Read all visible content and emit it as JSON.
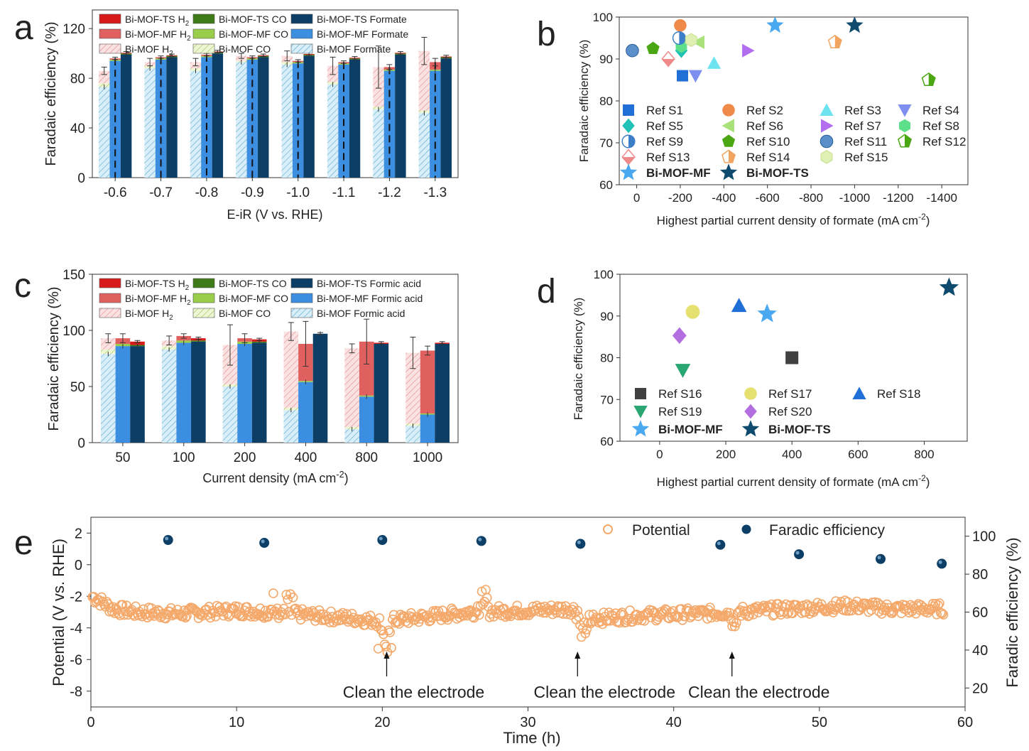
{
  "panels": {
    "a": {
      "letter": "a",
      "title": "",
      "xlabel": "E-iR (V vs. RHE)",
      "ylabel": "Faradaic efficiency (%)",
      "ylim": [
        0,
        135
      ],
      "yticks": [
        0,
        40,
        80,
        120
      ],
      "categories": [
        "-0.6",
        "-0.7",
        "-0.8",
        "-0.9",
        "-1.0",
        "-1.1",
        "-1.2",
        "-1.3"
      ],
      "legend": [
        [
          "Bi-MOF-TS H",
          "Bi-MOF-TS CO",
          "Bi-MOF-TS Formate"
        ],
        [
          "Bi-MOF-MF H",
          "Bi-MOF-MF CO",
          "Bi-MOF-MF Formate"
        ],
        [
          "Bi-MOF H",
          "Bi-MOF CO",
          "Bi-MOF Formate"
        ]
      ],
      "legend_sub": "2",
      "groups": [
        {
          "sample": "Bi-MOF",
          "formate": [
            73,
            88,
            86,
            93,
            91,
            75,
            55,
            52
          ],
          "co": [
            3,
            2,
            2,
            1,
            2,
            2,
            2,
            2
          ],
          "h2": [
            10,
            3,
            5,
            4,
            5,
            13,
            32,
            48
          ],
          "err": [
            3,
            3,
            3,
            2,
            4,
            7,
            17,
            11
          ]
        },
        {
          "sample": "Bi-MOF-MF",
          "formate": [
            94,
            95,
            97,
            95,
            92,
            91,
            86,
            86
          ],
          "co": [
            1,
            1,
            1,
            1,
            1,
            1,
            1,
            1
          ],
          "h2": [
            1,
            1,
            1,
            1,
            1,
            1,
            2,
            6
          ],
          "err": [
            1,
            1,
            1,
            1,
            1,
            1,
            2,
            3
          ]
        },
        {
          "sample": "Bi-MOF-TS",
          "formate": [
            99,
            97,
            100,
            97,
            98,
            95,
            99,
            96
          ],
          "co": [
            1,
            1,
            1,
            1,
            1,
            1,
            1,
            1
          ],
          "h2": [
            0.5,
            0.5,
            0.5,
            0.5,
            0.5,
            0.5,
            0.5,
            0.5
          ],
          "err": [
            1,
            1,
            1,
            1,
            1,
            1,
            1,
            1
          ]
        }
      ]
    },
    "b": {
      "letter": "b",
      "xlabel": "Highest partial current density of formate (mA cm",
      "xlabel_sup": "-2",
      "xlabel_end": ")",
      "ylabel": "Faradaic efficiency (%)",
      "xlim": [
        80,
        -1520
      ],
      "ylim": [
        60,
        100
      ],
      "xticks": [
        "0",
        "-200",
        "-400",
        "-600",
        "-800",
        "-1000",
        "-1200",
        "-1400"
      ],
      "yticks": [
        60,
        70,
        80,
        90,
        100
      ],
      "points": [
        {
          "label": "Ref S1",
          "x": -210,
          "y": 86,
          "marker": "square",
          "color": "#1f6fd6"
        },
        {
          "label": "Ref S2",
          "x": -200,
          "y": 98,
          "marker": "circle",
          "color": "#f08a4b"
        },
        {
          "label": "Ref S3",
          "x": -355,
          "y": 89,
          "marker": "triangle-up",
          "color": "#6ee3f0"
        },
        {
          "label": "Ref S4",
          "x": -270,
          "y": 86,
          "marker": "triangle-down",
          "color": "#7e8ff0"
        },
        {
          "label": "Ref S5",
          "x": -205,
          "y": 92,
          "marker": "diamond",
          "color": "#22c1b8"
        },
        {
          "label": "Ref S6",
          "x": -285,
          "y": 94,
          "marker": "triangle-left",
          "color": "#a9e27b"
        },
        {
          "label": "Ref S7",
          "x": -510,
          "y": 92,
          "marker": "triangle-right",
          "color": "#b36ef0"
        },
        {
          "label": "Ref S8",
          "x": -205,
          "y": 93,
          "marker": "hexagon",
          "color": "#5ee08a"
        },
        {
          "label": "Ref S9",
          "x": -195,
          "y": 95,
          "marker": "half-circle",
          "color": "#3b7ec9"
        },
        {
          "label": "Ref S10",
          "x": -75,
          "y": 92.5,
          "marker": "pentagon",
          "color": "#4aa612"
        },
        {
          "label": "Ref S11",
          "x": 20,
          "y": 92,
          "marker": "ball",
          "color": "#5b8fc9"
        },
        {
          "label": "Ref S12",
          "x": -1340,
          "y": 85,
          "marker": "half-pentagon",
          "color": "#4aa612"
        },
        {
          "label": "Ref S13",
          "x": -145,
          "y": 90,
          "marker": "half-diamond",
          "color": "#f08a8a"
        },
        {
          "label": "Ref S14",
          "x": -910,
          "y": 94,
          "marker": "half-pentagon",
          "color": "#f0a460"
        },
        {
          "label": "Ref S15",
          "x": -250,
          "y": 94.5,
          "marker": "hexagon-light",
          "color": "#dff0b4"
        },
        {
          "label": "Bi-MOF-MF",
          "x": -635,
          "y": 98,
          "marker": "star",
          "color": "#4aa8f0",
          "bold": true
        },
        {
          "label": "Bi-MOF-TS",
          "x": -1000,
          "y": 98,
          "marker": "star",
          "color": "#0d4a6e",
          "bold": true
        }
      ]
    },
    "c": {
      "letter": "c",
      "xlabel": "Current density (mA cm",
      "xlabel_sup": "-2",
      "xlabel_end": ")",
      "ylabel": "Faradaic efficiency (%)",
      "ylim": [
        0,
        150
      ],
      "yticks": [
        0,
        50,
        100,
        150
      ],
      "categories": [
        "50",
        "100",
        "200",
        "400",
        "800",
        "1000"
      ],
      "legend": [
        [
          "Bi-MOF-TS H",
          "Bi-MOF-TS CO",
          "Bi-MOF-TS Formic acid"
        ],
        [
          "Bi-MOF-MF H",
          "Bi-MOF-MF CO",
          "Bi-MOF-MF Formic acid"
        ],
        [
          "Bi-MOF H",
          "Bi-MOF CO",
          "Bi-MOF Formic acid"
        ]
      ],
      "legend_sub": "2",
      "groups": [
        {
          "sample": "Bi-MOF",
          "formate": [
            79,
            83,
            50,
            29,
            12,
            15
          ],
          "co": [
            4,
            3,
            2,
            2,
            2,
            2
          ],
          "h2": [
            10,
            5,
            35,
            68,
            70,
            63
          ],
          "err": [
            4,
            4,
            18,
            8,
            4,
            14
          ]
        },
        {
          "sample": "Bi-MOF-MF",
          "formate": [
            86,
            89,
            88,
            54,
            41,
            25
          ],
          "co": [
            2,
            2,
            2,
            1,
            1,
            1
          ],
          "h2": [
            5,
            4,
            3,
            33,
            48,
            56
          ],
          "err": [
            4,
            2,
            4,
            20,
            20,
            4
          ]
        },
        {
          "sample": "Bi-MOF-TS",
          "formate": [
            86,
            90,
            89,
            97,
            88,
            88
          ],
          "co": [
            1,
            1,
            1,
            0,
            0,
            0
          ],
          "h2": [
            3,
            2,
            2,
            0,
            1,
            1
          ],
          "err": [
            1,
            1,
            1,
            1,
            1,
            1
          ]
        }
      ]
    },
    "d": {
      "letter": "d",
      "xlabel": "Highest partial current density of formate (mA cm",
      "xlabel_sup": "-2",
      "xlabel_end": ")",
      "ylabel": "Faradaic efficiency (%)",
      "xlim": [
        -120,
        930
      ],
      "ylim": [
        60,
        100
      ],
      "xticks": [
        0,
        200,
        400,
        600,
        800
      ],
      "yticks": [
        60,
        70,
        80,
        90,
        100
      ],
      "points": [
        {
          "label": "Ref S16",
          "x": 400,
          "y": 80,
          "marker": "square",
          "color": "#404040"
        },
        {
          "label": "Ref S17",
          "x": 100,
          "y": 91,
          "marker": "circle",
          "color": "#e6e070"
        },
        {
          "label": "Ref S18",
          "x": 240,
          "y": 92.5,
          "marker": "triangle-up",
          "color": "#1f6fd6"
        },
        {
          "label": "Ref S19",
          "x": 70,
          "y": 77,
          "marker": "triangle-down",
          "color": "#2aa673"
        },
        {
          "label": "Ref S20",
          "x": 60,
          "y": 85.3,
          "marker": "diamond",
          "color": "#b36ee0"
        },
        {
          "label": "Bi-MOF-MF",
          "x": 325,
          "y": 90.5,
          "marker": "star",
          "color": "#4aa8f0",
          "bold": true
        },
        {
          "label": "Bi-MOF-TS",
          "x": 875,
          "y": 96.8,
          "marker": "star",
          "color": "#0d4a6e",
          "bold": true
        }
      ]
    },
    "e": {
      "letter": "e",
      "xlabel": "Time (h)",
      "ylabel_left": "Potential (V vs. RHE)",
      "ylabel_right": "Faradic efficiency (%)",
      "xlim": [
        0,
        60
      ],
      "ylim_left": [
        -9,
        3
      ],
      "ylim_right": [
        10,
        110
      ],
      "xticks": [
        0,
        10,
        20,
        30,
        40,
        50,
        60
      ],
      "yticks_left": [
        -8,
        -6,
        -4,
        -2,
        0,
        2
      ],
      "yticks_right": [
        20,
        40,
        60,
        80,
        100
      ],
      "legend_potential": "Potential",
      "legend_fe": "Faradic efficiency",
      "fe_points": [
        {
          "t": 5.3,
          "fe": 98
        },
        {
          "t": 11.9,
          "fe": 96.5
        },
        {
          "t": 20,
          "fe": 98
        },
        {
          "t": 26.8,
          "fe": 97.5
        },
        {
          "t": 33.6,
          "fe": 96
        },
        {
          "t": 43.2,
          "fe": 95.5
        },
        {
          "t": 48.6,
          "fe": 90.5
        },
        {
          "t": 54.2,
          "fe": 88
        },
        {
          "t": 58.4,
          "fe": 85.5
        }
      ],
      "potential_baseline": [
        [
          0,
          -2.0
        ],
        [
          0.5,
          -2.2
        ],
        [
          1.5,
          -2.8
        ],
        [
          3,
          -3.0
        ],
        [
          6,
          -3.1
        ],
        [
          10,
          -2.9
        ],
        [
          12,
          -3.0
        ],
        [
          15,
          -3.2
        ],
        [
          18,
          -3.4
        ],
        [
          20,
          -3.6
        ],
        [
          23,
          -3.3
        ],
        [
          26,
          -3.0
        ],
        [
          30,
          -2.9
        ],
        [
          33,
          -2.8
        ],
        [
          35,
          -3.4
        ],
        [
          38,
          -3.2
        ],
        [
          42,
          -3.1
        ],
        [
          44,
          -3.0
        ],
        [
          48,
          -2.8
        ],
        [
          52,
          -2.6
        ],
        [
          55,
          -2.8
        ],
        [
          58.5,
          -2.8
        ]
      ],
      "annotations": [
        {
          "t": 20.3,
          "text": "Clean the electrode"
        },
        {
          "t": 33.4,
          "text": "Clean the electrode"
        },
        {
          "t": 44,
          "text": "Clean the electrode"
        }
      ]
    }
  },
  "colors": {
    "ts_formate": "#0d3f66",
    "ts_co": "#3f7a18",
    "ts_h2": "#d91a1a",
    "mf_formate": "#3c8ee0",
    "mf_co": "#9acd4a",
    "mf_h2": "#e06060",
    "mof_formate": "#a9d8ec",
    "mof_co": "#cfe59a",
    "mof_h2": "#f4b4b4",
    "potential": "#f4a86a",
    "fe": "#0d3f66"
  }
}
